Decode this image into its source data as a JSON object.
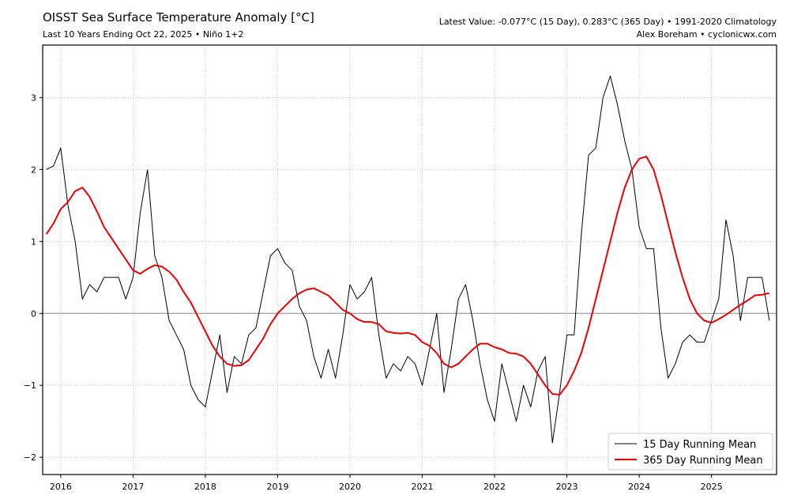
{
  "chart_data": {
    "type": "line",
    "title": "OISST Sea Surface Temperature Anomaly [°C]",
    "subtitle": "Last 10 Years Ending Oct 22, 2025 • Niño 1+2",
    "info_line_1": "Latest Value: -0.077°C (15 Day), 0.283°C (365 Day) • 1991-2020 Climatology",
    "info_line_2": "Alex Boreham • cyclonicwx.com",
    "x": [
      2015.8,
      2015.9,
      2016.0,
      2016.1,
      2016.2,
      2016.3,
      2016.4,
      2016.5,
      2016.6,
      2016.7,
      2016.8,
      2016.9,
      2017.0,
      2017.1,
      2017.2,
      2017.3,
      2017.4,
      2017.5,
      2017.6,
      2017.7,
      2017.8,
      2017.9,
      2018.0,
      2018.1,
      2018.2,
      2018.3,
      2018.4,
      2018.5,
      2018.6,
      2018.7,
      2018.8,
      2018.9,
      2019.0,
      2019.1,
      2019.2,
      2019.3,
      2019.4,
      2019.5,
      2019.6,
      2019.7,
      2019.8,
      2019.9,
      2020.0,
      2020.1,
      2020.2,
      2020.3,
      2020.4,
      2020.5,
      2020.6,
      2020.7,
      2020.8,
      2020.9,
      2021.0,
      2021.1,
      2021.2,
      2021.3,
      2021.4,
      2021.5,
      2021.6,
      2021.7,
      2021.8,
      2021.9,
      2022.0,
      2022.1,
      2022.2,
      2022.3,
      2022.4,
      2022.5,
      2022.6,
      2022.7,
      2022.8,
      2022.9,
      2023.0,
      2023.1,
      2023.2,
      2023.3,
      2023.4,
      2023.5,
      2023.6,
      2023.7,
      2023.8,
      2023.9,
      2024.0,
      2024.1,
      2024.2,
      2024.3,
      2024.4,
      2024.5,
      2024.6,
      2024.7,
      2024.8,
      2024.9,
      2025.0,
      2025.1,
      2025.2,
      2025.3,
      2025.4,
      2025.5,
      2025.6,
      2025.7,
      2025.8
    ],
    "series": [
      {
        "name": "15 Day Running Mean",
        "color": "#000000",
        "width": 1,
        "values": [
          2.0,
          2.05,
          2.3,
          1.5,
          1.0,
          0.2,
          0.4,
          0.3,
          0.5,
          0.5,
          0.5,
          0.2,
          0.5,
          1.4,
          2.0,
          0.8,
          0.5,
          -0.1,
          -0.3,
          -0.5,
          -1.0,
          -1.2,
          -1.3,
          -0.8,
          -0.3,
          -1.1,
          -0.6,
          -0.7,
          -0.3,
          -0.2,
          0.3,
          0.8,
          0.9,
          0.7,
          0.6,
          0.1,
          -0.1,
          -0.6,
          -0.9,
          -0.5,
          -0.9,
          -0.3,
          0.4,
          0.2,
          0.3,
          0.5,
          -0.3,
          -0.9,
          -0.7,
          -0.8,
          -0.6,
          -0.7,
          -1.0,
          -0.5,
          0.0,
          -1.1,
          -0.5,
          0.2,
          0.4,
          -0.1,
          -0.7,
          -1.2,
          -1.5,
          -0.7,
          -1.1,
          -1.5,
          -1.0,
          -1.3,
          -0.8,
          -0.6,
          -1.8,
          -1.1,
          -0.3,
          -0.3,
          1.1,
          2.2,
          2.3,
          3.0,
          3.3,
          2.9,
          2.4,
          2.0,
          1.2,
          0.9,
          0.9,
          -0.2,
          -0.9,
          -0.7,
          -0.4,
          -0.3,
          -0.4,
          -0.4,
          -0.1,
          0.2,
          1.3,
          0.8,
          -0.1,
          0.5,
          0.5,
          0.5,
          -0.1
        ]
      },
      {
        "name": "365 Day Running Mean",
        "color": "#ee0000",
        "width": 2,
        "values": [
          1.1,
          1.25,
          1.45,
          1.55,
          1.7,
          1.75,
          1.62,
          1.42,
          1.2,
          1.05,
          0.9,
          0.75,
          0.6,
          0.55,
          0.62,
          0.67,
          0.65,
          0.58,
          0.47,
          0.3,
          0.15,
          -0.05,
          -0.25,
          -0.45,
          -0.6,
          -0.7,
          -0.73,
          -0.72,
          -0.65,
          -0.5,
          -0.35,
          -0.15,
          0.0,
          0.1,
          0.2,
          0.28,
          0.33,
          0.35,
          0.3,
          0.25,
          0.15,
          0.05,
          0.0,
          -0.08,
          -0.12,
          -0.12,
          -0.15,
          -0.25,
          -0.27,
          -0.28,
          -0.27,
          -0.3,
          -0.4,
          -0.45,
          -0.55,
          -0.7,
          -0.75,
          -0.7,
          -0.6,
          -0.5,
          -0.42,
          -0.42,
          -0.47,
          -0.5,
          -0.55,
          -0.56,
          -0.6,
          -0.7,
          -0.85,
          -1.0,
          -1.12,
          -1.13,
          -1.0,
          -0.8,
          -0.55,
          -0.2,
          0.2,
          0.6,
          1.0,
          1.4,
          1.75,
          2.0,
          2.15,
          2.18,
          2.0,
          1.65,
          1.25,
          0.85,
          0.5,
          0.2,
          0.0,
          -0.1,
          -0.13,
          -0.08,
          -0.02,
          0.05,
          0.12,
          0.18,
          0.25,
          0.26,
          0.28
        ]
      }
    ],
    "xlim": [
      2015.75,
      2025.9
    ],
    "xticks": [
      2016,
      2017,
      2018,
      2019,
      2020,
      2021,
      2022,
      2023,
      2024,
      2025
    ],
    "ylim": [
      -2.24,
      3.73
    ],
    "yticks": [
      {
        "value": -2,
        "label": "−2"
      },
      {
        "value": -1,
        "label": "−1"
      },
      0,
      1,
      2,
      3
    ],
    "hline": 0,
    "grid": true,
    "legend": "lower right"
  }
}
